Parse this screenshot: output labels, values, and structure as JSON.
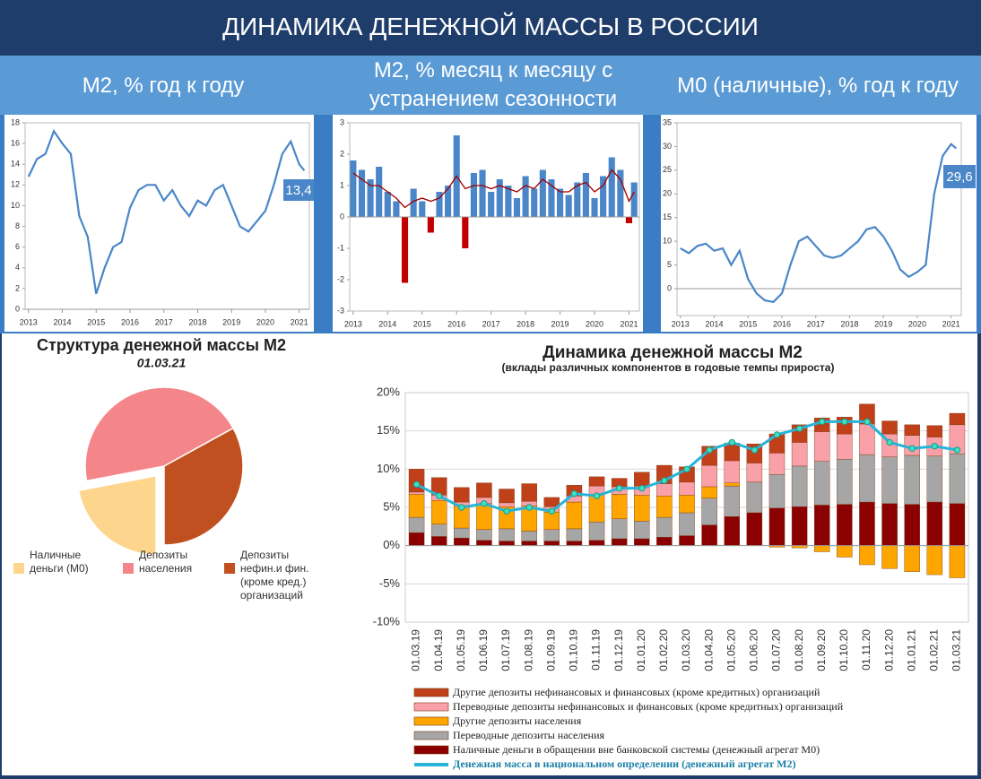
{
  "title": "ДИНАМИКА ДЕНЕЖНОЙ МАССЫ В РОССИИ",
  "chart_data": [
    {
      "type": "line",
      "title": "M2, % год к году",
      "color": "#4a86c8",
      "x": [
        2013.0,
        2013.25,
        2013.5,
        2013.75,
        2014.0,
        2014.25,
        2014.5,
        2014.75,
        2015.0,
        2015.25,
        2015.5,
        2015.75,
        2016.0,
        2016.25,
        2016.5,
        2016.75,
        2017.0,
        2017.25,
        2017.5,
        2017.75,
        2018.0,
        2018.25,
        2018.5,
        2018.75,
        2019.0,
        2019.25,
        2019.5,
        2019.75,
        2020.0,
        2020.25,
        2020.5,
        2020.75,
        2021.0,
        2021.15
      ],
      "values": [
        12.8,
        14.5,
        15,
        17.2,
        16,
        15,
        9,
        7,
        1.5,
        4,
        6,
        6.5,
        9.8,
        11.5,
        12,
        12,
        10.5,
        11.5,
        10,
        9,
        10.5,
        10,
        11.5,
        12,
        10,
        8,
        7.5,
        8.5,
        9.5,
        12,
        15,
        16.2,
        14,
        13.4
      ],
      "annotation": "13,4",
      "xlim": [
        2012.9,
        2021.3
      ],
      "xticks": [
        2013,
        2014,
        2015,
        2016,
        2017,
        2018,
        2019,
        2020,
        2021
      ],
      "ylim": [
        0,
        18
      ],
      "yticks": [
        0,
        2,
        4,
        6,
        8,
        10,
        12,
        14,
        16,
        18
      ]
    },
    {
      "type": "bar",
      "title": "M2, % месяц к месяцу с устранением сезонности",
      "x": [
        2013.0,
        2013.25,
        2013.5,
        2013.75,
        2014.0,
        2014.25,
        2014.5,
        2014.75,
        2015.0,
        2015.25,
        2015.5,
        2015.75,
        2016.0,
        2016.25,
        2016.5,
        2016.75,
        2017.0,
        2017.25,
        2017.5,
        2017.75,
        2018.0,
        2018.25,
        2018.5,
        2018.75,
        2019.0,
        2019.25,
        2019.5,
        2019.75,
        2020.0,
        2020.25,
        2020.5,
        2020.75,
        2021.0,
        2021.15
      ],
      "series": [
        {
          "color": "#4a86c8",
          "negative_color": "#c00000",
          "values": [
            1.8,
            1.5,
            1.2,
            1.6,
            0.8,
            0.5,
            -2.1,
            0.9,
            0.5,
            -0.5,
            0.8,
            1.0,
            2.6,
            -1.0,
            1.4,
            1.5,
            0.8,
            1.2,
            1.0,
            0.6,
            1.3,
            0.9,
            1.5,
            1.2,
            0.9,
            0.7,
            1.1,
            1.4,
            0.6,
            1.3,
            1.9,
            1.5,
            -0.2,
            1.1
          ]
        },
        {
          "type": "line",
          "color": "#a00000",
          "values": [
            1.4,
            1.2,
            1.0,
            1.0,
            0.8,
            0.6,
            0.3,
            0.5,
            0.6,
            0.5,
            0.6,
            0.9,
            1.3,
            0.9,
            1.0,
            1.0,
            0.9,
            1.0,
            0.9,
            0.8,
            1.0,
            0.9,
            1.2,
            1.0,
            0.8,
            0.8,
            1.0,
            1.1,
            0.8,
            1.0,
            1.5,
            1.2,
            0.5,
            0.8
          ]
        }
      ],
      "xlim": [
        2012.9,
        2021.3
      ],
      "xticks": [
        2013,
        2014,
        2015,
        2016,
        2017,
        2018,
        2019,
        2020,
        2021
      ],
      "ylim": [
        -3,
        3
      ],
      "yticks": [
        -3,
        -2,
        -1,
        0,
        1,
        2,
        3
      ]
    },
    {
      "type": "line",
      "title": "M0 (наличные), % год к году",
      "color": "#4a86c8",
      "x": [
        2013.0,
        2013.25,
        2013.5,
        2013.75,
        2014.0,
        2014.25,
        2014.5,
        2014.75,
        2015.0,
        2015.25,
        2015.5,
        2015.75,
        2016.0,
        2016.25,
        2016.5,
        2016.75,
        2017.0,
        2017.25,
        2017.5,
        2017.75,
        2018.0,
        2018.25,
        2018.5,
        2018.75,
        2019.0,
        2019.25,
        2019.5,
        2019.75,
        2020.0,
        2020.25,
        2020.5,
        2020.75,
        2021.0,
        2021.15
      ],
      "values": [
        8.5,
        7.5,
        9,
        9.5,
        8,
        8.5,
        5,
        8,
        2,
        -1,
        -2.5,
        -2.8,
        -1,
        5,
        10,
        11,
        9,
        7,
        6.5,
        7,
        8.5,
        10,
        12.5,
        13,
        11,
        8,
        4,
        2.5,
        3.5,
        5,
        20,
        28,
        30.5,
        29.6
      ],
      "annotation": "29,6",
      "xlim": [
        2012.9,
        2021.3
      ],
      "xticks": [
        2013,
        2014,
        2015,
        2016,
        2017,
        2018,
        2019,
        2020,
        2021
      ],
      "ylim": [
        0,
        35
      ],
      "yticks": [
        0,
        5,
        10,
        15,
        20,
        25,
        30,
        35
      ]
    },
    {
      "type": "pie",
      "title": "Структура денежной массы М2",
      "subtitle": "01.03.21",
      "categories": [
        "Наличные деньги (М0)",
        "Депозиты населения",
        "Депозиты нефин.и фин. (кроме кред.) организаций"
      ],
      "values": [
        22,
        45,
        33
      ],
      "colors": [
        "#fdd58c",
        "#f4868a",
        "#c0501f"
      ],
      "exploded": 0
    },
    {
      "type": "bar",
      "stacked": true,
      "grid": true,
      "title": "Динамика денежной массы М2",
      "subtitle": "(вклады различных компонентов в годовые темпы прироста)",
      "categories": [
        "01.03.19",
        "01.04.19",
        "01.05.19",
        "01.06.19",
        "01.07.19",
        "01.08.19",
        "01.09.19",
        "01.10.19",
        "01.11.19",
        "01.12.19",
        "01.01.20",
        "01.02.20",
        "01.03.20",
        "01.04.20",
        "01.05.20",
        "01.06.20",
        "01.07.20",
        "01.08.20",
        "01.09.20",
        "01.10.20",
        "01.11.20",
        "01.12.20",
        "01.01.21",
        "01.02.21",
        "01.03.21"
      ],
      "series": [
        {
          "name": "Наличные деньги в обращении вне банковской системы (денежный агрегат М0)",
          "color": "#8b0000",
          "values": [
            1.7,
            1.2,
            1.0,
            0.7,
            0.6,
            0.6,
            0.6,
            0.6,
            0.7,
            0.9,
            0.9,
            1.1,
            1.3,
            2.7,
            3.8,
            4.3,
            4.9,
            5.1,
            5.3,
            5.4,
            5.7,
            5.5,
            5.4,
            5.7,
            5.5
          ]
        },
        {
          "name": "Переводные депозиты населения",
          "color": "#a6a6a6",
          "values": [
            2.0,
            1.6,
            1.3,
            1.4,
            1.6,
            1.3,
            1.5,
            1.6,
            2.4,
            2.6,
            2.3,
            2.6,
            3.0,
            3.5,
            4.0,
            4.0,
            4.4,
            5.3,
            5.7,
            5.9,
            6.2,
            6.1,
            6.4,
            6.0,
            6.5
          ]
        },
        {
          "name": "Другие депозиты населения",
          "color": "#ffa500",
          "values": [
            3.0,
            3.1,
            2.9,
            3.4,
            2.9,
            3.3,
            2.3,
            3.5,
            3.6,
            3.2,
            3.4,
            2.8,
            2.3,
            1.5,
            0.4,
            0,
            -0.2,
            -0.3,
            -0.8,
            -1.5,
            -2.5,
            -3.0,
            -3.4,
            -3.8,
            -4.2
          ]
        },
        {
          "name": "Переводные депозиты нефинансовых и финансовых (кроме кредитных)  организаций",
          "color": "#f9a0a8",
          "values": [
            0.3,
            0.7,
            0.5,
            0.8,
            0.5,
            0.6,
            0.7,
            0.8,
            1.1,
            1.0,
            1.2,
            1.6,
            1.7,
            2.8,
            2.9,
            2.5,
            2.8,
            3.1,
            3.9,
            3.3,
            4.0,
            3.0,
            2.6,
            2.5,
            3.8
          ]
        },
        {
          "name": "Другие депозиты нефинансовых и финансовых (кроме кредитных)  организаций",
          "color": "#c0401a",
          "values": [
            3.0,
            2.3,
            1.9,
            1.9,
            1.8,
            2.3,
            1.2,
            1.4,
            1.2,
            1.1,
            1.8,
            2.4,
            2.0,
            2.5,
            2.3,
            2.5,
            2.5,
            2.3,
            1.8,
            2.2,
            2.6,
            1.7,
            1.4,
            1.5,
            1.5
          ]
        },
        {
          "name": "Денежная масса в национальном  определении  (денежный агрегат  М2)",
          "type": "line",
          "color": "#28b4d8",
          "values": [
            8.0,
            6.5,
            5.0,
            5.5,
            4.5,
            5.0,
            4.5,
            6.8,
            6.5,
            7.5,
            7.5,
            8.5,
            10.0,
            12.5,
            13.5,
            12.5,
            14.5,
            15.3,
            16.2,
            16.2,
            16.2,
            13.5,
            12.7,
            13.0,
            12.5
          ]
        }
      ],
      "ylim": [
        -10,
        20
      ],
      "yticks": [
        {
          "value": -10,
          "label": "-10%"
        },
        {
          "value": -5,
          "label": "-5%"
        },
        {
          "value": 0,
          "label": "0%"
        },
        {
          "value": 5,
          "label": "5%"
        },
        {
          "value": 10,
          "label": "10%"
        },
        {
          "value": 15,
          "label": "15%"
        },
        {
          "value": 20,
          "label": "20%"
        }
      ]
    }
  ]
}
